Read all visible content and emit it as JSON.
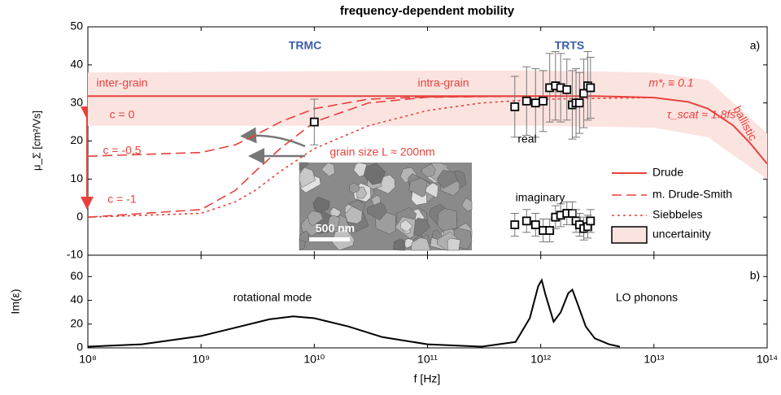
{
  "chart_data": [
    {
      "type": "line",
      "title": "frequency-dependent mobility",
      "y_label": "μ_Σ [cm²/Vs]",
      "xlim": [
        100000000.0,
        100000000000000.0
      ],
      "log_x": true,
      "ylim": [
        -10,
        50
      ],
      "yticks": [
        -10,
        0,
        10,
        20,
        30,
        40,
        50
      ],
      "band": {
        "name": "uncertainity",
        "color": "#fbe3e0",
        "x": [
          100000000.0,
          100000000000.0,
          1000000000000.0,
          10000000000000.0,
          30000000000000.0,
          100000000000000.0
        ],
        "lower": [
          24,
          24,
          24,
          23.5,
          21,
          10
        ],
        "upper": [
          38,
          38.5,
          38.5,
          38,
          36,
          22
        ]
      },
      "series": [
        {
          "name": "Drude",
          "color": "#e8413c",
          "style": "solid",
          "x": [
            100000000.0,
            1000000000000.0,
            3000000000000.0,
            10000000000000.0,
            20000000000000.0,
            30000000000000.0,
            50000000000000.0,
            70000000000000.0,
            100000000000000.0
          ],
          "values": [
            31.8,
            31.8,
            31.8,
            31.4,
            30.3,
            28.5,
            24.1,
            19.6,
            14.0
          ]
        },
        {
          "name": "m. Drude-Smith",
          "color": "#e8413c",
          "style": "dashed",
          "x": [
            100000000.0,
            1000000000.0,
            2000000000.0,
            3000000000.0,
            5000000000.0,
            10000000000.0,
            30000000000.0,
            100000000000.0,
            1000000000000.0
          ],
          "values": [
            16,
            17,
            19,
            21.5,
            25,
            28.5,
            31,
            31.6,
            31.8
          ]
        },
        {
          "color": "#e8413c",
          "style": "dashed",
          "x": [
            100000000.0,
            1000000000.0,
            2000000000.0,
            3000000000.0,
            5000000000.0,
            10000000000.0,
            30000000000.0,
            100000000000.0,
            1000000000000.0
          ],
          "values": [
            0,
            2,
            7,
            12,
            18,
            25,
            30,
            31.5,
            31.8
          ]
        },
        {
          "name": "Siebbeles",
          "color": "#e8413c",
          "style": "dotted",
          "x": [
            100000000.0,
            1000000000.0,
            2000000000.0,
            3000000000.0,
            5000000000.0,
            10000000000.0,
            30000000000.0,
            100000000000.0,
            300000000000.0,
            1000000000000.0,
            10000000000000.0
          ],
          "values": [
            0,
            1,
            4,
            7,
            12,
            18,
            24,
            28,
            30,
            31,
            31.4
          ]
        }
      ],
      "points": [
        {
          "x": [
            10000000000.0
          ],
          "values": [
            25
          ],
          "errors": [
            6
          ]
        },
        {
          "x": [
            590000000000.0,
            750000000000.0,
            900000000000.0,
            1050000000000.0,
            1200000000000.0,
            1350000000000.0,
            1500000000000.0,
            1700000000000.0,
            1900000000000.0,
            2050000000000.0,
            2200000000000.0,
            2400000000000.0,
            2600000000000.0,
            2750000000000.0
          ],
          "values": [
            29,
            30.5,
            30,
            30.5,
            34,
            34.5,
            34,
            33.5,
            29.5,
            30,
            30,
            32.5,
            34.5,
            34
          ],
          "errors": [
            8,
            9,
            9,
            8,
            9,
            9,
            9,
            8,
            9,
            9,
            8,
            9,
            9,
            8
          ]
        },
        {
          "x": [
            590000000000.0,
            750000000000.0,
            900000000000.0,
            1050000000000.0,
            1200000000000.0,
            1350000000000.0,
            1500000000000.0,
            1700000000000.0,
            1900000000000.0,
            2050000000000.0,
            2200000000000.0,
            2400000000000.0,
            2600000000000.0,
            2750000000000.0
          ],
          "values": [
            -2,
            -1,
            -2,
            -3.5,
            -3.5,
            0,
            0.5,
            1,
            1,
            -1,
            -2,
            -3,
            -2.5,
            -1
          ],
          "errors": [
            3,
            3,
            3,
            3,
            3,
            3,
            3,
            3,
            3,
            3,
            3,
            3,
            3,
            3
          ]
        }
      ],
      "annotations": [
        "TRMC",
        "TRTS",
        "a)",
        "inter-grain",
        "intra-grain",
        "c = 0",
        "c = -0.5",
        "c = -1",
        "grain size L ≈ 200nm",
        "real",
        "imaginary",
        "m*ᵣ ≡ 0.1",
        "τ_scat ≈ 1.8fs",
        "ballistic",
        "500 nm"
      ]
    },
    {
      "type": "line",
      "x_label": "f [Hz]",
      "y_label": "Im(ε)",
      "xlim": [
        100000000.0,
        100000000000000.0
      ],
      "log_x": true,
      "xticks": [
        {
          "value": 100000000.0,
          "label": "10⁸"
        },
        {
          "value": 1000000000.0,
          "label": "10⁹"
        },
        {
          "value": 10000000000.0,
          "label": "10¹⁰"
        },
        {
          "value": 100000000000.0,
          "label": "10¹¹"
        },
        {
          "value": 1000000000000.0,
          "label": "10¹²"
        },
        {
          "value": 10000000000000.0,
          "label": "10¹³"
        },
        {
          "value": 100000000000000.0,
          "label": "10¹⁴"
        }
      ],
      "ylim": [
        0,
        78
      ],
      "yticks": [
        0,
        20,
        40,
        60
      ],
      "series": [
        {
          "color": "#000000",
          "style": "solid",
          "x": [
            100000000.0,
            300000000.0,
            1000000000.0,
            2000000000.0,
            4000000000.0,
            6500000000.0,
            10000000000.0,
            20000000000.0,
            40000000000.0,
            100000000000.0,
            300000000000.0,
            600000000000.0,
            800000000000.0,
            950000000000.0,
            1020000000000.0,
            1100000000000.0,
            1300000000000.0,
            1500000000000.0,
            1750000000000.0,
            1900000000000.0,
            2100000000000.0,
            2500000000000.0,
            3000000000000.0,
            4000000000000.0,
            5000000000000.0
          ],
          "values": [
            1,
            3,
            10,
            17,
            24,
            26.5,
            25,
            18,
            9,
            3,
            1,
            5,
            25,
            52,
            57,
            45,
            22,
            30,
            46,
            49,
            38,
            18,
            8,
            3,
            1
          ]
        }
      ],
      "annotations": [
        "b)",
        "rotational mode",
        "LO phonons"
      ]
    }
  ]
}
